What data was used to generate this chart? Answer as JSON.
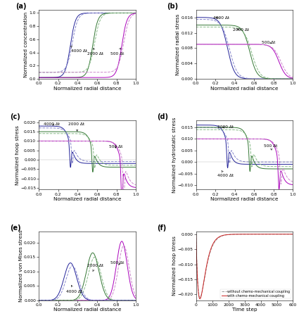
{
  "fig_width": 4.25,
  "fig_height": 4.59,
  "dpi": 100,
  "panel_labels": [
    "(a)",
    "(b)",
    "(c)",
    "(d)",
    "(e)",
    "(f)"
  ],
  "xlabel_radial": "Normalized radial distance",
  "xlabel_time": "Time step",
  "ylabels": [
    "Normalized concentration",
    "Normalized radial stress",
    "Normalized hoop stress",
    "Normalized hydrostatic stress",
    "Normalized von Mises stress",
    "Normalized hoop stress"
  ],
  "colors": {
    "t500_solid": "#aa00bb",
    "t500_dash": "#cc88cc",
    "t2000_solid": "#337733",
    "t2000_dash": "#88bb88",
    "t4000_solid": "#222299",
    "t4000_dash": "#8888cc",
    "without_coupling": "#999999",
    "with_coupling": "#cc2222"
  },
  "legend_labels_f": [
    "without chemo-mechanical coupling",
    "with chemo-mechanical coupling"
  ]
}
